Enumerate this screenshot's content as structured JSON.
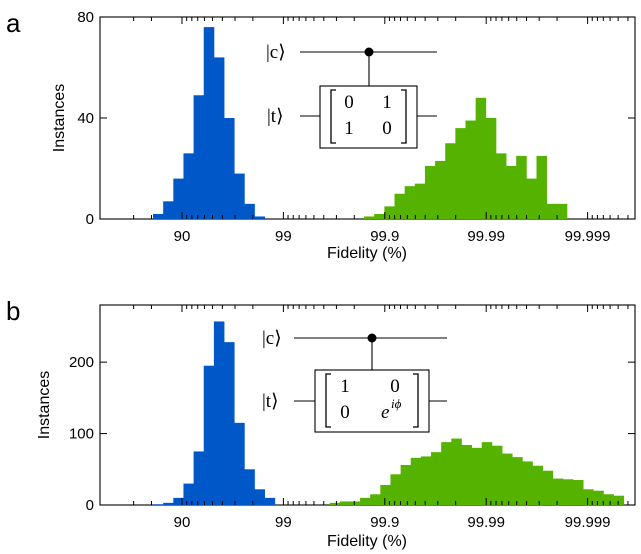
{
  "chart_data": [
    {
      "type": "bar",
      "panel_label": "a",
      "xlabel": "Fidelity (%)",
      "ylabel": "Instances",
      "x_ticks": [
        "90",
        "99",
        "99.9",
        "99.99",
        "99.999"
      ],
      "y_ticks": [
        0,
        40,
        80
      ],
      "ylim": [
        0,
        80
      ],
      "x_scale": "log of infidelity (100 − F), decreasing left to right",
      "grid": false,
      "series": [
        {
          "color": "#0057c8",
          "bins_from_fidelity": 80.7,
          "bin_width_decades": 0.1,
          "counts": [
            2,
            7,
            16,
            26,
            49,
            76,
            64,
            40,
            18,
            6,
            1
          ]
        },
        {
          "color": "#55b300",
          "bins_from_fidelity": 99.84,
          "bin_width_decades": 0.1,
          "counts": [
            1,
            2,
            5,
            10,
            13,
            14,
            21,
            23,
            30,
            36,
            39,
            48,
            40,
            26,
            21,
            25,
            16,
            25,
            6,
            6
          ]
        }
      ],
      "inset": {
        "control_label": "|c⟩",
        "target_label": "|t⟩",
        "matrix": [
          [
            "0",
            "1"
          ],
          [
            "1",
            "0"
          ]
        ]
      }
    },
    {
      "type": "bar",
      "panel_label": "b",
      "xlabel": "Fidelity (%)",
      "ylabel": "Instances",
      "x_ticks": [
        "90",
        "99",
        "99.9",
        "99.99",
        "99.999"
      ],
      "y_ticks": [
        0,
        100,
        200
      ],
      "ylim": [
        0,
        280
      ],
      "x_scale": "log of infidelity (100 − F), decreasing left to right",
      "grid": false,
      "series": [
        {
          "color": "#0057c8",
          "bins_from_fidelity": 80.7,
          "bin_width_decades": 0.1,
          "counts": [
            1,
            3,
            10,
            30,
            75,
            195,
            257,
            228,
            115,
            50,
            22,
            10
          ]
        },
        {
          "color": "#55b300",
          "bins_from_fidelity": 99.65,
          "bin_width_decades": 0.1,
          "counts": [
            3,
            5,
            5,
            10,
            15,
            28,
            43,
            56,
            66,
            68,
            74,
            88,
            93,
            84,
            80,
            88,
            83,
            72,
            67,
            61,
            55,
            48,
            37,
            36,
            35,
            22,
            20,
            15,
            13
          ]
        }
      ],
      "inset": {
        "control_label": "|c⟩",
        "target_label": "|t⟩",
        "matrix": [
          [
            "1",
            "0"
          ],
          [
            "0",
            "e^{iφ}"
          ]
        ]
      }
    }
  ]
}
